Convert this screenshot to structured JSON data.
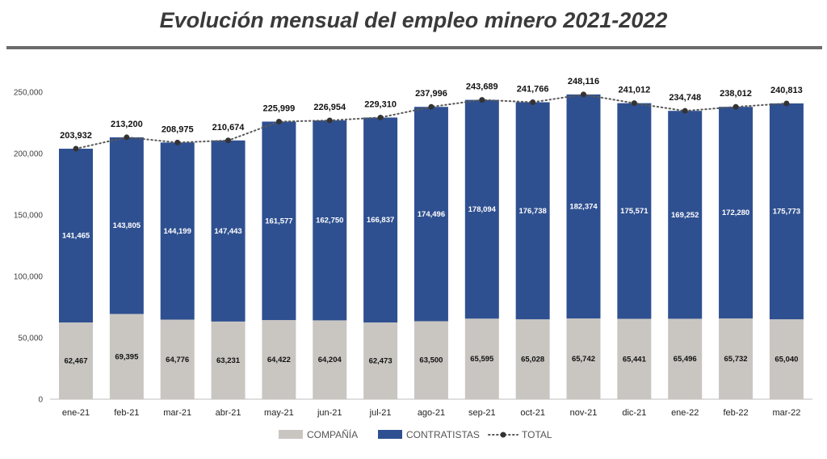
{
  "title": "Evolución mensual del empleo minero 2021-2022",
  "chart_data": {
    "type": "bar",
    "stacked": true,
    "categories": [
      "ene-21",
      "feb-21",
      "mar-21",
      "abr-21",
      "may-21",
      "jun-21",
      "jul-21",
      "ago-21",
      "sep-21",
      "oct-21",
      "nov-21",
      "dic-21",
      "ene-22",
      "feb-22",
      "mar-22"
    ],
    "series": [
      {
        "name": "COMPAÑÍA",
        "color": "#c9c6c2",
        "values": [
          62467,
          69395,
          64776,
          63231,
          64422,
          64204,
          62473,
          63500,
          65595,
          65028,
          65742,
          65441,
          65496,
          65732,
          65040
        ],
        "labels": [
          "62,467",
          "69,395",
          "64,776",
          "63,231",
          "64,422",
          "64,204",
          "62,473",
          "63,500",
          "65,595",
          "65,028",
          "65,742",
          "65,441",
          "65,496",
          "65,732",
          "65,040"
        ]
      },
      {
        "name": "CONTRATISTAS",
        "color": "#2f5090",
        "values": [
          141465,
          143805,
          144199,
          147443,
          161577,
          162750,
          166837,
          174496,
          178094,
          176738,
          182374,
          175571,
          169252,
          172280,
          175773
        ],
        "labels": [
          "141,465",
          "143,805",
          "144,199",
          "147,443",
          "161,577",
          "162,750",
          "166,837",
          "174,496",
          "178,094",
          "176,738",
          "182,374",
          "175,571",
          "169,252",
          "172,280",
          "175,773"
        ]
      },
      {
        "name": "TOTAL",
        "type": "line",
        "style": "dotted",
        "color": "#595959",
        "values": [
          203932,
          213200,
          208975,
          210674,
          225999,
          226954,
          229310,
          237996,
          243689,
          241766,
          248116,
          241012,
          234748,
          238012,
          240813
        ],
        "labels": [
          "203,932",
          "213,200",
          "208,975",
          "210,674",
          "225,999",
          "226,954",
          "229,310",
          "237,996",
          "243,689",
          "241,766",
          "248,116",
          "241,012",
          "234,748",
          "238,012",
          "240,813"
        ]
      }
    ],
    "y_ticks": [
      0,
      50000,
      100000,
      150000,
      200000,
      250000
    ],
    "y_tick_labels": [
      "0",
      "50,000",
      "100,000",
      "150,000",
      "200,000",
      "250,000"
    ],
    "ylim": [
      0,
      250000
    ],
    "grid": false,
    "legend_position": "bottom-center"
  }
}
